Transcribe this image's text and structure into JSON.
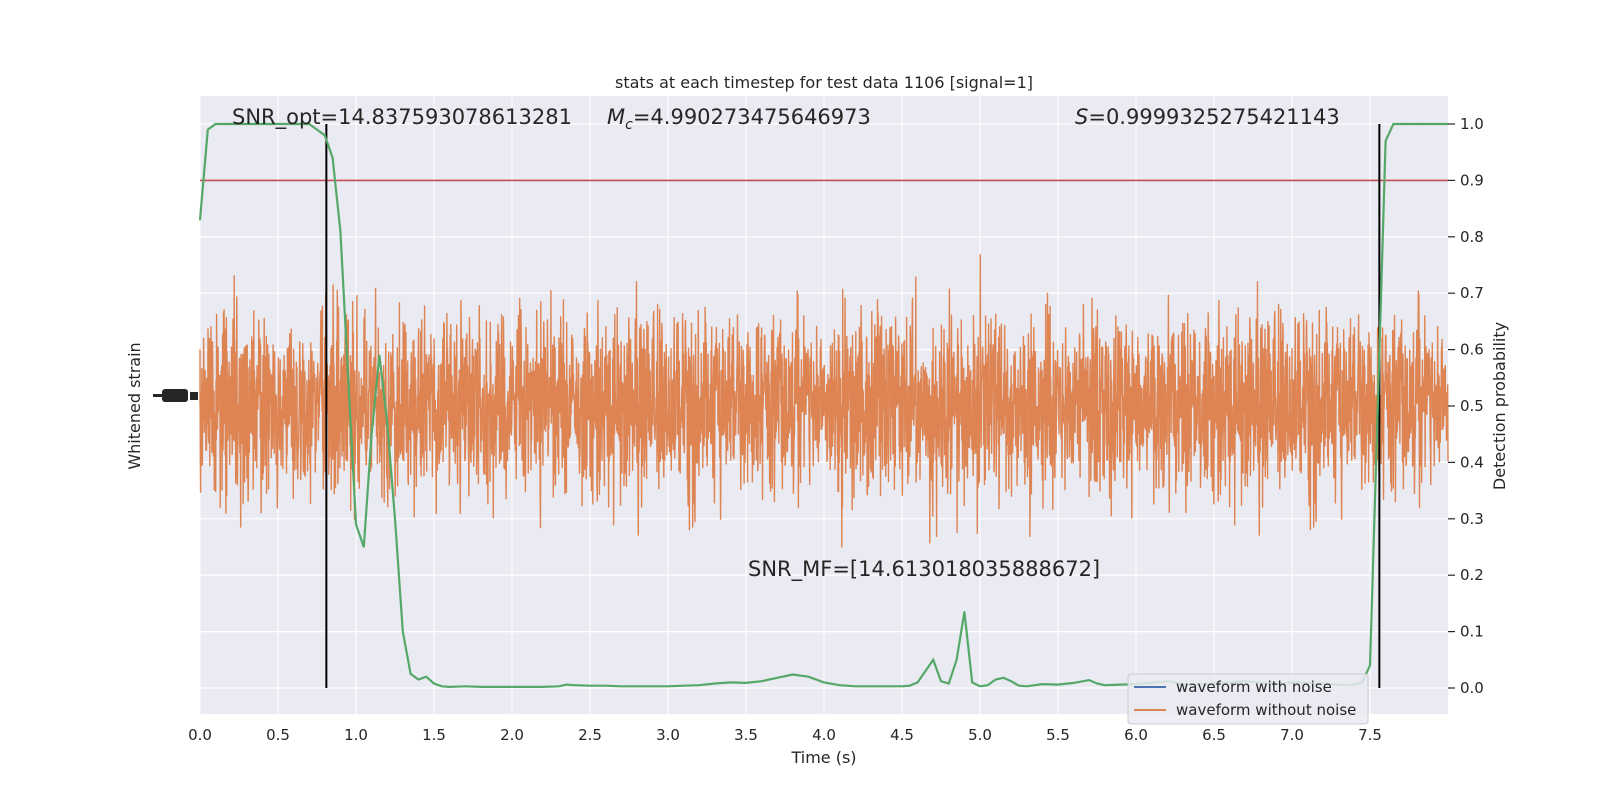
{
  "chart_data": {
    "type": "line",
    "title": "stats at each timestep for test data 1106 [signal=1]",
    "xlabel": "Time (s)",
    "ylabel_left": "Whitened strain",
    "ylabel_right": "Detection probability",
    "xlim": [
      0.0,
      8.0
    ],
    "ylim_right": [
      0.0,
      1.0
    ],
    "x_ticks": [
      "0.0",
      "0.5",
      "1.0",
      "1.5",
      "2.0",
      "2.5",
      "3.0",
      "3.5",
      "4.0",
      "4.5",
      "5.0",
      "5.5",
      "6.0",
      "6.5",
      "7.0",
      "7.5"
    ],
    "y_right_ticks": [
      "0.0",
      "0.1",
      "0.2",
      "0.3",
      "0.4",
      "0.5",
      "0.6",
      "0.7",
      "0.8",
      "0.9",
      "1.0"
    ],
    "grid": true,
    "legend_position": "lower-right",
    "annotations": {
      "snr_opt": "SNR_opt=14.837593078613281",
      "mc_symbol": "M",
      "mc_sub": "c",
      "mc_value": "=4.990273475646973",
      "s_symbol": "S",
      "s_value": "=0.9999325275421143",
      "snr_mf": "SNR_MF=[14.613018035888672]"
    },
    "threshold": 0.9,
    "vlines_x": [
      0.81,
      7.56
    ],
    "series": [
      {
        "name": "waveform with noise",
        "color": "#4c72b0"
      },
      {
        "name": "waveform without noise",
        "color": "#dd8452"
      }
    ],
    "detection_probability": {
      "color": "#55a868",
      "x": [
        0.0,
        0.05,
        0.1,
        0.2,
        0.3,
        0.4,
        0.5,
        0.6,
        0.7,
        0.75,
        0.8,
        0.85,
        0.9,
        0.95,
        1.0,
        1.05,
        1.1,
        1.15,
        1.2,
        1.25,
        1.3,
        1.35,
        1.4,
        1.45,
        1.5,
        1.55,
        1.6,
        1.7,
        1.8,
        1.9,
        2.0,
        2.1,
        2.2,
        2.3,
        2.35,
        2.4,
        2.5,
        2.6,
        2.7,
        2.8,
        2.9,
        3.0,
        3.1,
        3.2,
        3.3,
        3.4,
        3.5,
        3.6,
        3.7,
        3.8,
        3.9,
        4.0,
        4.1,
        4.2,
        4.3,
        4.4,
        4.5,
        4.55,
        4.6,
        4.65,
        4.7,
        4.75,
        4.8,
        4.85,
        4.9,
        4.95,
        5.0,
        5.05,
        5.1,
        5.15,
        5.2,
        5.25,
        5.3,
        5.4,
        5.5,
        5.6,
        5.7,
        5.75,
        5.8,
        5.9,
        6.0,
        6.1,
        6.2,
        6.3,
        6.4,
        6.5,
        6.6,
        6.7,
        6.8,
        6.9,
        7.0,
        7.1,
        7.2,
        7.3,
        7.35,
        7.4,
        7.45,
        7.5,
        7.55,
        7.6,
        7.65,
        7.7,
        7.8,
        7.9,
        8.0
      ],
      "y": [
        0.83,
        0.99,
        1.0,
        1.0,
        1.0,
        1.0,
        1.0,
        1.0,
        1.0,
        0.99,
        0.98,
        0.94,
        0.81,
        0.55,
        0.29,
        0.25,
        0.45,
        0.59,
        0.47,
        0.3,
        0.1,
        0.025,
        0.015,
        0.02,
        0.008,
        0.003,
        0.002,
        0.003,
        0.002,
        0.002,
        0.002,
        0.002,
        0.002,
        0.003,
        0.006,
        0.005,
        0.004,
        0.004,
        0.003,
        0.003,
        0.003,
        0.003,
        0.004,
        0.005,
        0.008,
        0.01,
        0.009,
        0.012,
        0.018,
        0.024,
        0.02,
        0.01,
        0.005,
        0.003,
        0.003,
        0.003,
        0.003,
        0.004,
        0.01,
        0.03,
        0.05,
        0.012,
        0.008,
        0.05,
        0.135,
        0.01,
        0.003,
        0.005,
        0.015,
        0.018,
        0.012,
        0.004,
        0.003,
        0.007,
        0.006,
        0.009,
        0.014,
        0.008,
        0.005,
        0.006,
        0.007,
        0.009,
        0.012,
        0.007,
        0.006,
        0.008,
        0.01,
        0.012,
        0.009,
        0.007,
        0.01,
        0.009,
        0.008,
        0.006,
        0.005,
        0.006,
        0.01,
        0.04,
        0.5,
        0.97,
        1.0,
        1.0,
        1.0,
        1.0,
        1.0
      ]
    }
  }
}
